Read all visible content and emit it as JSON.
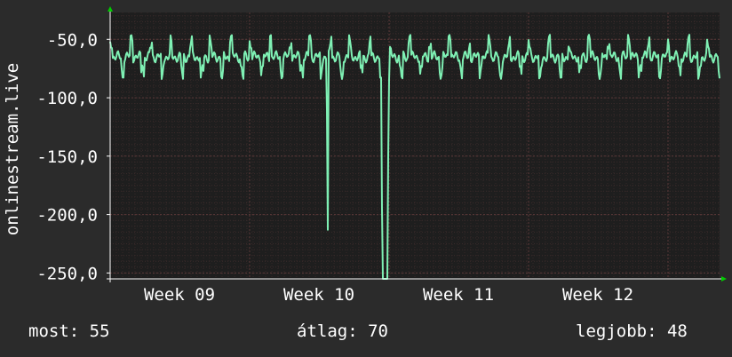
{
  "chart_data": {
    "type": "line",
    "ylabel": "onlinestream.live",
    "y_ticks": [
      "-50,0",
      "-100,0",
      "-150,0",
      "-200,0",
      "-250,0"
    ],
    "y_tick_values": [
      -50,
      -100,
      -150,
      -200,
      -250
    ],
    "ylim": [
      -255,
      -27
    ],
    "x_ticks": [
      "Week 09",
      "Week 10",
      "Week 11",
      "Week 12"
    ],
    "grid": true,
    "colors": {
      "background": "#2b2b2b",
      "plot": "#1e1e1e",
      "line": "#7ff0b4",
      "grid": "#4a3434",
      "axis": "#ffffff"
    },
    "series": [
      {
        "anomalies": [
          {
            "x": 0.356,
            "y": -213
          },
          {
            "x": 0.447,
            "y": -255
          },
          {
            "x": 0.455,
            "y": -255
          },
          {
            "x": 0.447,
            "y": -195
          }
        ]
      }
    ]
  },
  "stats": {
    "now": "most: 55",
    "avg": "átlag: 70",
    "best": "legjobb: 48"
  }
}
